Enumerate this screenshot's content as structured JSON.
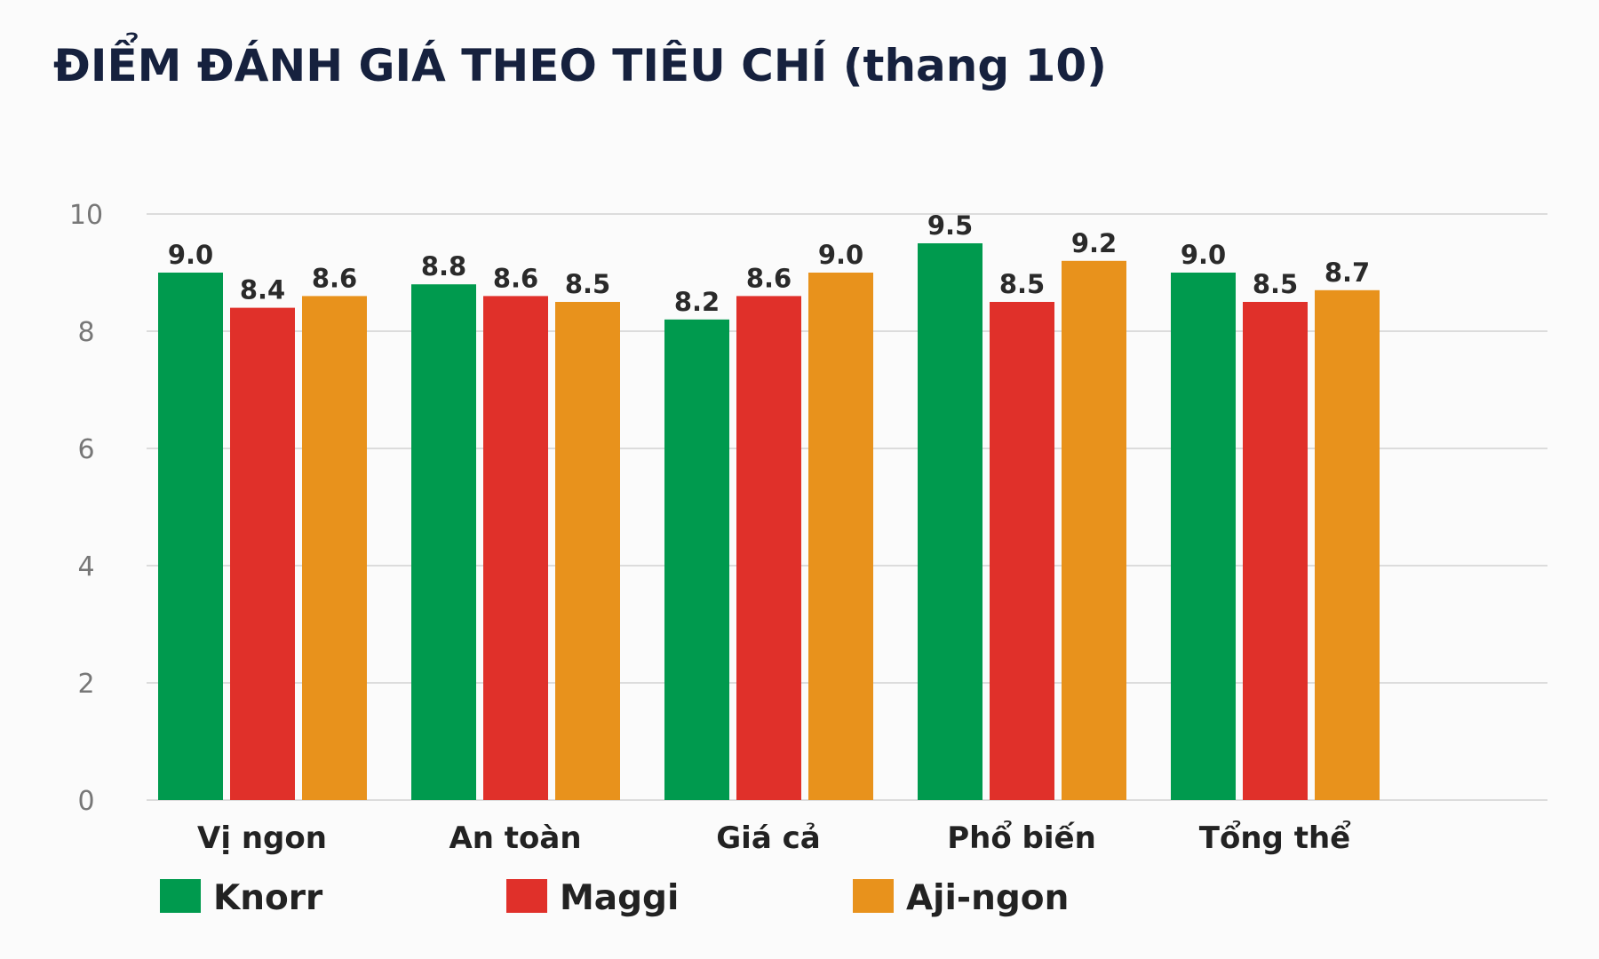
{
  "chart_data": {
    "type": "bar",
    "title": "ĐIỂM ĐÁNH GIÁ THEO TIÊU CHÍ (thang 10)",
    "xlabel": "",
    "ylabel": "",
    "ylim": [
      0,
      10
    ],
    "yticks": [
      0,
      2,
      4,
      6,
      8,
      10
    ],
    "grid": true,
    "legend_position": "bottom-left",
    "categories": [
      "Vị ngon",
      "An toàn",
      "Giá cả",
      "Phổ biến",
      "Tổng thể"
    ],
    "series": [
      {
        "name": "Knorr",
        "color": "#009a4e",
        "values": [
          9.0,
          8.8,
          8.2,
          9.5,
          9.0
        ]
      },
      {
        "name": "Maggi",
        "color": "#e0302a",
        "values": [
          8.4,
          8.6,
          8.6,
          8.5,
          8.5
        ]
      },
      {
        "name": "Aji-ngon",
        "color": "#e8921c",
        "values": [
          8.6,
          8.5,
          9.0,
          9.2,
          8.7
        ]
      }
    ]
  }
}
